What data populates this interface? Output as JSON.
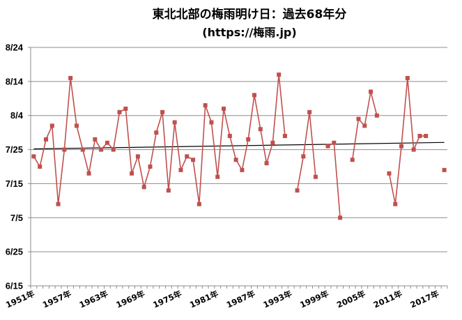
{
  "chart_data": {
    "type": "line",
    "title": "東北北部の梅雨明け日：過去68年分",
    "subtitle": "(https://梅雨.jp)",
    "xlabel": "",
    "ylabel": "",
    "y_unit": "days since 6/15",
    "ylim": [
      0,
      70
    ],
    "y_ticks": [
      {
        "label": "6/15",
        "value": 0
      },
      {
        "label": "6/25",
        "value": 10
      },
      {
        "label": "7/5",
        "value": 20
      },
      {
        "label": "7/15",
        "value": 30
      },
      {
        "label": "7/25",
        "value": 40
      },
      {
        "label": "8/4",
        "value": 50
      },
      {
        "label": "8/14",
        "value": 60
      },
      {
        "label": "8/24",
        "value": 70
      }
    ],
    "x_tick_labels": [
      "1951年",
      "1957年",
      "1963年",
      "1969年",
      "1975年",
      "1981年",
      "1987年",
      "1993年",
      "1999年",
      "2005年",
      "2011年",
      "2017年"
    ],
    "x_tick_years": [
      1951,
      1957,
      1963,
      1969,
      1975,
      1981,
      1987,
      1993,
      1999,
      2005,
      2011,
      2017
    ],
    "x_range": [
      1951,
      2018
    ],
    "grid": {
      "horizontal": true,
      "vertical": false
    },
    "legend": "none",
    "series": [
      {
        "name": "梅雨明け日",
        "color": "#c0504d",
        "years": [
          1951,
          1952,
          1953,
          1954,
          1955,
          1956,
          1957,
          1958,
          1959,
          1960,
          1961,
          1962,
          1963,
          1964,
          1965,
          1966,
          1967,
          1968,
          1969,
          1970,
          1971,
          1972,
          1973,
          1974,
          1975,
          1976,
          1977,
          1978,
          1979,
          1980,
          1981,
          1982,
          1983,
          1984,
          1985,
          1986,
          1987,
          1988,
          1989,
          1990,
          1991,
          1992,
          1993,
          1994,
          1995,
          1996,
          1997,
          1998,
          1999,
          2000,
          2001,
          2002,
          2003,
          2004,
          2005,
          2006,
          2007,
          2008,
          2009,
          2010,
          2011,
          2012,
          2013,
          2014,
          2015,
          2016,
          2017,
          2018
        ],
        "values": [
          38,
          35,
          43,
          47,
          24,
          40,
          61,
          47,
          40,
          33,
          43,
          40,
          42,
          40,
          51,
          52,
          33,
          38,
          29,
          35,
          45,
          51,
          28,
          48,
          34,
          38,
          37,
          24,
          53,
          48,
          32,
          52,
          44,
          37,
          34,
          43,
          56,
          46,
          36,
          42,
          62,
          44,
          null,
          28,
          38,
          51,
          32,
          null,
          41,
          42,
          20,
          null,
          37,
          49,
          47,
          57,
          50,
          null,
          33,
          24,
          41,
          61,
          40,
          44,
          44,
          null,
          null,
          34
        ]
      },
      {
        "name": "トレンド",
        "color": "#000000",
        "type": "linear",
        "start": {
          "year": 1951,
          "value": 40.2
        },
        "end": {
          "year": 2018,
          "value": 42.1
        }
      }
    ]
  }
}
